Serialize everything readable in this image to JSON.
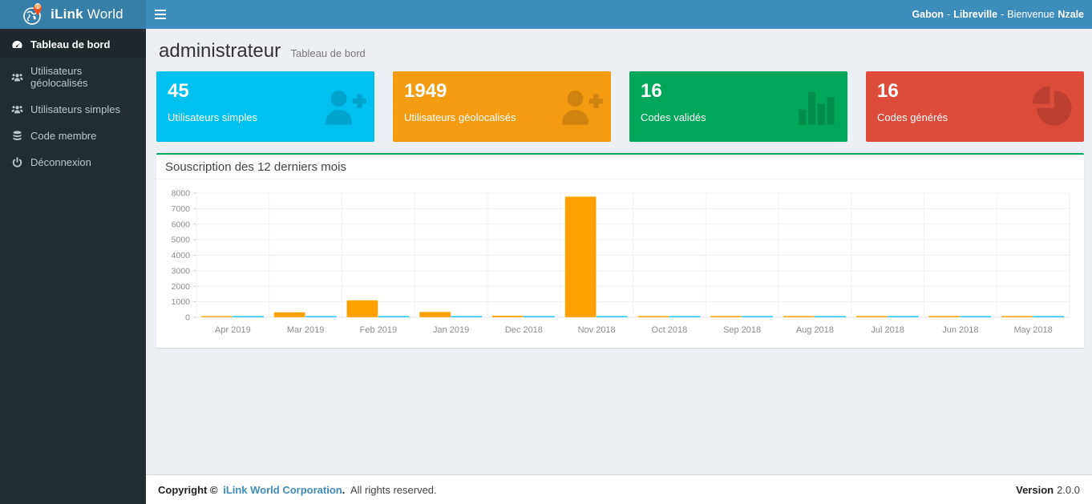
{
  "navbar": {
    "brand_bold": "iLink",
    "brand_light": "World",
    "right": {
      "country": "Gabon",
      "separator": "-",
      "city": "Libreville",
      "greeting": "Bienvenue",
      "user": "Nzale"
    }
  },
  "sidebar": {
    "items": [
      {
        "label": "Tableau de bord",
        "icon": "dashboard-icon",
        "active": true
      },
      {
        "label": "Utilisateurs géolocalisés",
        "icon": "users-icon",
        "active": false
      },
      {
        "label": "Utilisateurs simples",
        "icon": "users-icon",
        "active": false
      },
      {
        "label": "Code membre",
        "icon": "database-icon",
        "active": false
      },
      {
        "label": "Déconnexion",
        "icon": "power-icon",
        "active": false
      }
    ]
  },
  "header": {
    "title": "administrateur",
    "subtitle": "Tableau de bord"
  },
  "cards": [
    {
      "value": "45",
      "label": "Utilisateurs simples",
      "color": "#00c0ef",
      "icon": "user-plus-icon"
    },
    {
      "value": "1949",
      "label": "Utilisateurs géolocalisés",
      "color": "#f39c12",
      "icon": "user-plus-icon"
    },
    {
      "value": "16",
      "label": "Codes validés",
      "color": "#00a65a",
      "icon": "bar-chart-icon"
    },
    {
      "value": "16",
      "label": "Codes générés",
      "color": "#dd4b39",
      "icon": "pie-chart-icon"
    }
  ],
  "panel": {
    "title": "Souscription des 12 derniers mois",
    "accent_color": "#00a65a"
  },
  "chart_data": {
    "type": "bar",
    "title": "Souscription des 12 derniers mois",
    "categories": [
      "Apr 2019",
      "Mar 2019",
      "Feb 2019",
      "Jan 2019",
      "Dec 2018",
      "Nov 2018",
      "Oct 2018",
      "Sep 2018",
      "Aug 2018",
      "Jul 2018",
      "Jun 2018",
      "May 2018"
    ],
    "series": [
      {
        "name": "serie-orange",
        "color": "#ffa000",
        "values": [
          85,
          330,
          1100,
          350,
          110,
          7780,
          90,
          90,
          90,
          90,
          90,
          90
        ]
      },
      {
        "name": "serie-cyan",
        "color": "#00bfff",
        "values": [
          65,
          65,
          65,
          70,
          65,
          65,
          70,
          75,
          65,
          65,
          70,
          75
        ]
      }
    ],
    "xlabel": "",
    "ylabel": "",
    "ylim": [
      0,
      8000
    ],
    "ytick_step": 1000,
    "grid": true,
    "legend": false
  },
  "footer": {
    "copyright_prefix": "Copyright ©",
    "company": "iLink World Corporation",
    "dot": ".",
    "rest": "All rights reserved.",
    "version_label": "Version",
    "version": "2.0.0"
  }
}
